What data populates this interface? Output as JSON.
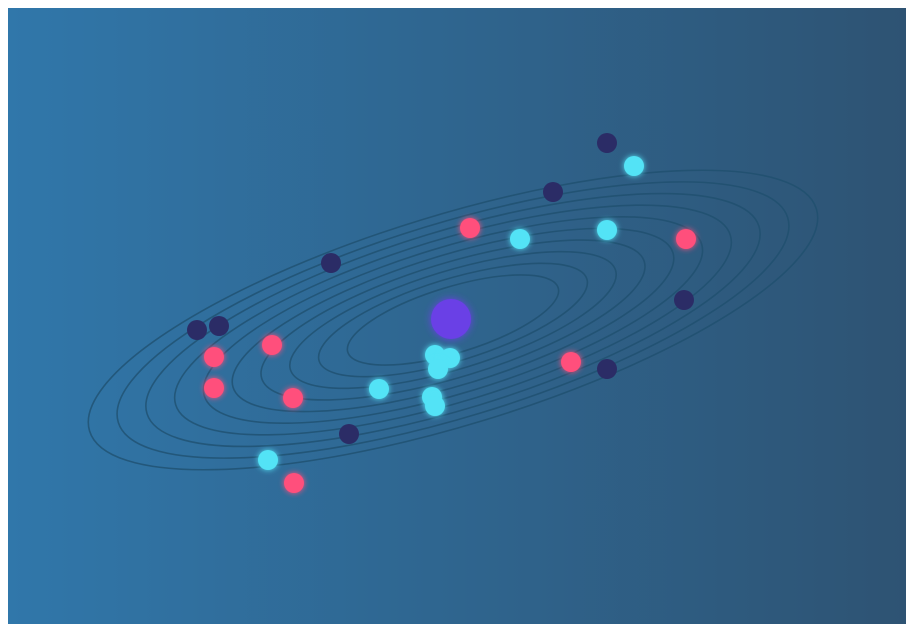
{
  "colors": {
    "background_left": "#3077aa",
    "background_right": "#2e5373",
    "ring": "#1f4f6e",
    "sun": "#6a3fe6",
    "planet_cyan": "#52e3f6",
    "planet_pink": "#ff4f7b",
    "planet_navy": "#2b2c66"
  },
  "icons": {
    "sun": "sun-icon",
    "planet": "planet-icon"
  },
  "ring_count": 10
}
